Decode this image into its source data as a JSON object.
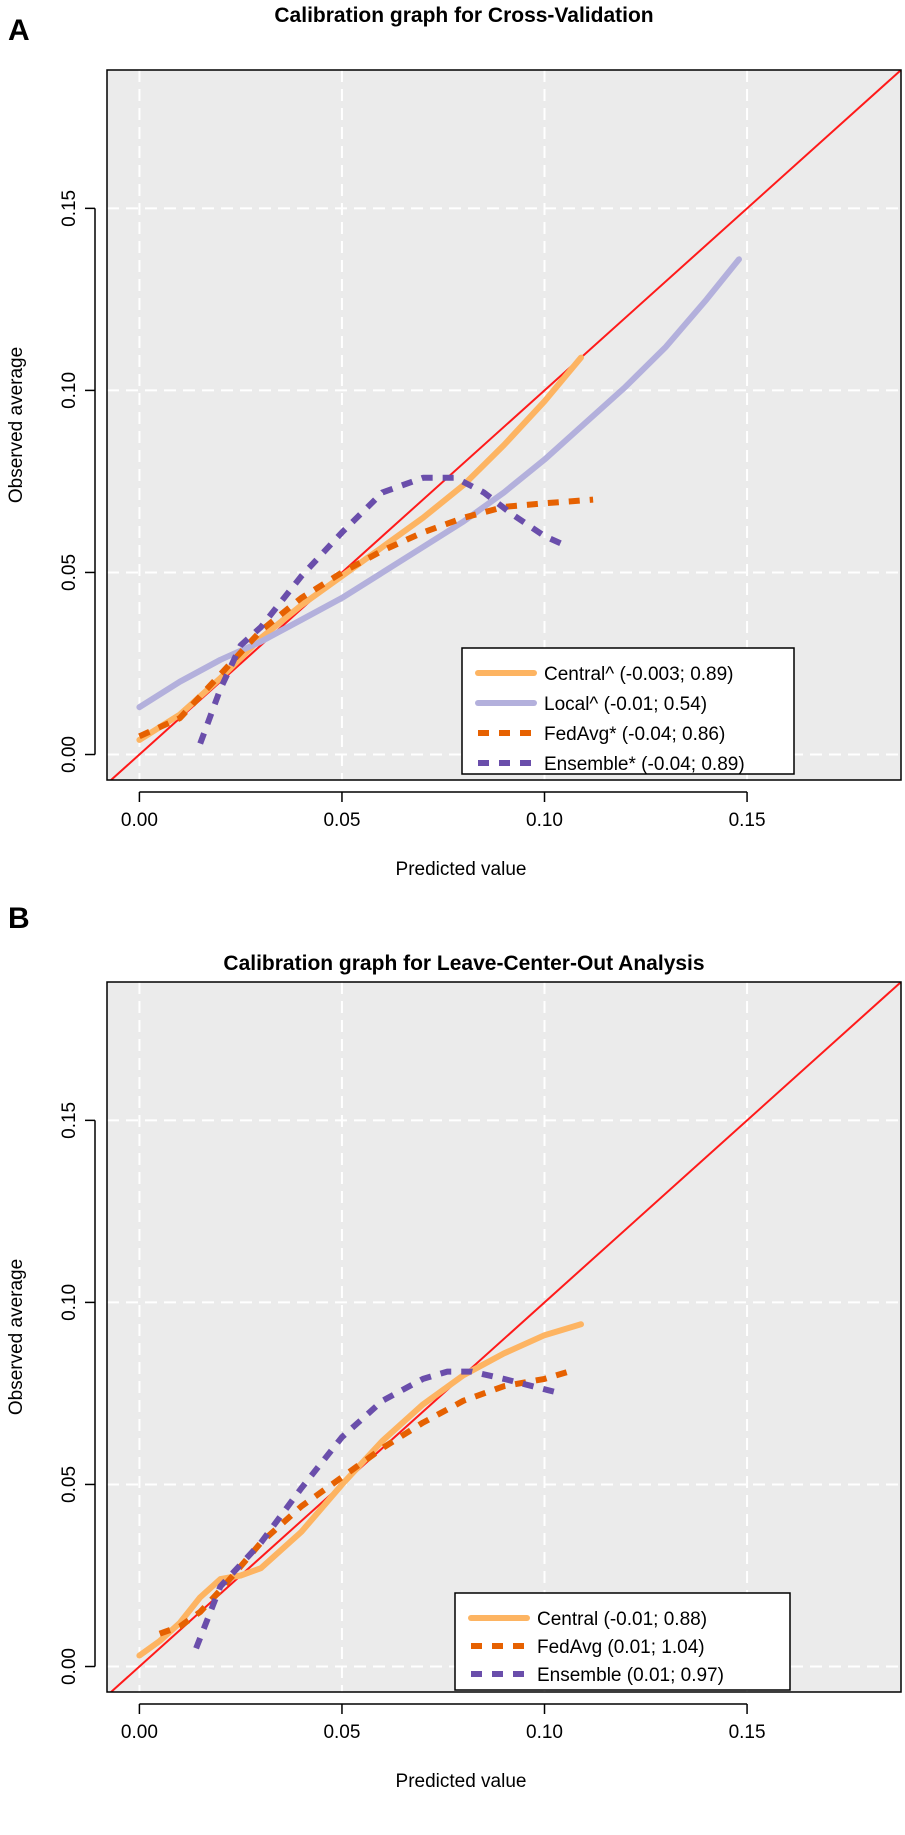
{
  "chart_data": [
    {
      "type": "line",
      "panel": "A",
      "title": "Calibration graph for Cross-Validation",
      "xlabel": "Predicted value",
      "ylabel": "Observed average",
      "xlim": [
        -0.008,
        0.188
      ],
      "ylim": [
        -0.007,
        0.188
      ],
      "xticks": [
        "0.00",
        "0.05",
        "0.10",
        "0.15"
      ],
      "yticks": [
        "0.00",
        "0.05",
        "0.10",
        "0.15"
      ],
      "grid": true,
      "legend_position": "bottom-right",
      "reference_line": {
        "name": "perfect calibration",
        "color": "#ff1a1a"
      },
      "series": [
        {
          "name": "Central^ (-0.003; 0.89)",
          "color": "#fdb462",
          "style": "solid",
          "x": [
            0.0,
            0.01,
            0.02,
            0.03,
            0.04,
            0.05,
            0.06,
            0.07,
            0.08,
            0.09,
            0.1,
            0.109
          ],
          "y": [
            0.004,
            0.011,
            0.021,
            0.032,
            0.041,
            0.049,
            0.057,
            0.065,
            0.074,
            0.085,
            0.097,
            0.109
          ]
        },
        {
          "name": "Local^ (-0.01; 0.54)",
          "color": "#b3b0dc",
          "style": "solid",
          "x": [
            0.0,
            0.01,
            0.02,
            0.03,
            0.04,
            0.05,
            0.06,
            0.07,
            0.08,
            0.09,
            0.1,
            0.11,
            0.12,
            0.13,
            0.14,
            0.148
          ],
          "y": [
            0.013,
            0.02,
            0.026,
            0.031,
            0.037,
            0.043,
            0.05,
            0.057,
            0.064,
            0.072,
            0.081,
            0.091,
            0.101,
            0.112,
            0.125,
            0.136
          ]
        },
        {
          "name": "FedAvg* (-0.04; 0.86)",
          "color": "#e66101",
          "style": "dashed",
          "x": [
            0.0,
            0.01,
            0.02,
            0.03,
            0.04,
            0.05,
            0.06,
            0.07,
            0.08,
            0.09,
            0.1,
            0.112
          ],
          "y": [
            0.005,
            0.01,
            0.022,
            0.034,
            0.043,
            0.05,
            0.056,
            0.061,
            0.065,
            0.068,
            0.069,
            0.07
          ]
        },
        {
          "name": "Ensemble* (-0.04; 0.89)",
          "color": "#6a4eab",
          "style": "dashed",
          "x": [
            0.015,
            0.02,
            0.025,
            0.03,
            0.04,
            0.05,
            0.06,
            0.07,
            0.078,
            0.085,
            0.092,
            0.1,
            0.106
          ],
          "y": [
            0.003,
            0.018,
            0.03,
            0.035,
            0.049,
            0.061,
            0.072,
            0.076,
            0.076,
            0.072,
            0.066,
            0.06,
            0.057
          ]
        }
      ]
    },
    {
      "type": "line",
      "panel": "B",
      "title": "Calibration graph for Leave-Center-Out Analysis",
      "xlabel": "Predicted value",
      "ylabel": "Observed average",
      "xlim": [
        -0.008,
        0.188
      ],
      "ylim": [
        -0.007,
        0.188
      ],
      "xticks": [
        "0.00",
        "0.05",
        "0.10",
        "0.15"
      ],
      "yticks": [
        "0.00",
        "0.05",
        "0.10",
        "0.15"
      ],
      "grid": true,
      "legend_position": "bottom-right",
      "reference_line": {
        "name": "perfect calibration",
        "color": "#ff1a1a"
      },
      "series": [
        {
          "name": "Central (-0.01; 0.88)",
          "color": "#fdb462",
          "style": "solid",
          "x": [
            0.0,
            0.005,
            0.01,
            0.015,
            0.02,
            0.025,
            0.03,
            0.04,
            0.05,
            0.06,
            0.07,
            0.08,
            0.09,
            0.1,
            0.109
          ],
          "y": [
            0.003,
            0.007,
            0.012,
            0.019,
            0.024,
            0.025,
            0.027,
            0.037,
            0.05,
            0.062,
            0.072,
            0.08,
            0.086,
            0.091,
            0.094
          ]
        },
        {
          "name": "FedAvg (0.01; 1.04)",
          "color": "#e66101",
          "style": "dashed",
          "x": [
            0.005,
            0.01,
            0.015,
            0.02,
            0.03,
            0.04,
            0.05,
            0.06,
            0.07,
            0.08,
            0.09,
            0.1,
            0.106
          ],
          "y": [
            0.009,
            0.011,
            0.015,
            0.021,
            0.034,
            0.044,
            0.052,
            0.06,
            0.067,
            0.073,
            0.077,
            0.079,
            0.081
          ]
        },
        {
          "name": "Ensemble (0.01; 0.97)",
          "color": "#6a4eab",
          "style": "dashed",
          "x": [
            0.014,
            0.02,
            0.03,
            0.04,
            0.05,
            0.06,
            0.07,
            0.076,
            0.082,
            0.09,
            0.097,
            0.104
          ],
          "y": [
            0.005,
            0.022,
            0.034,
            0.049,
            0.063,
            0.073,
            0.079,
            0.081,
            0.081,
            0.079,
            0.077,
            0.075
          ]
        }
      ]
    }
  ]
}
